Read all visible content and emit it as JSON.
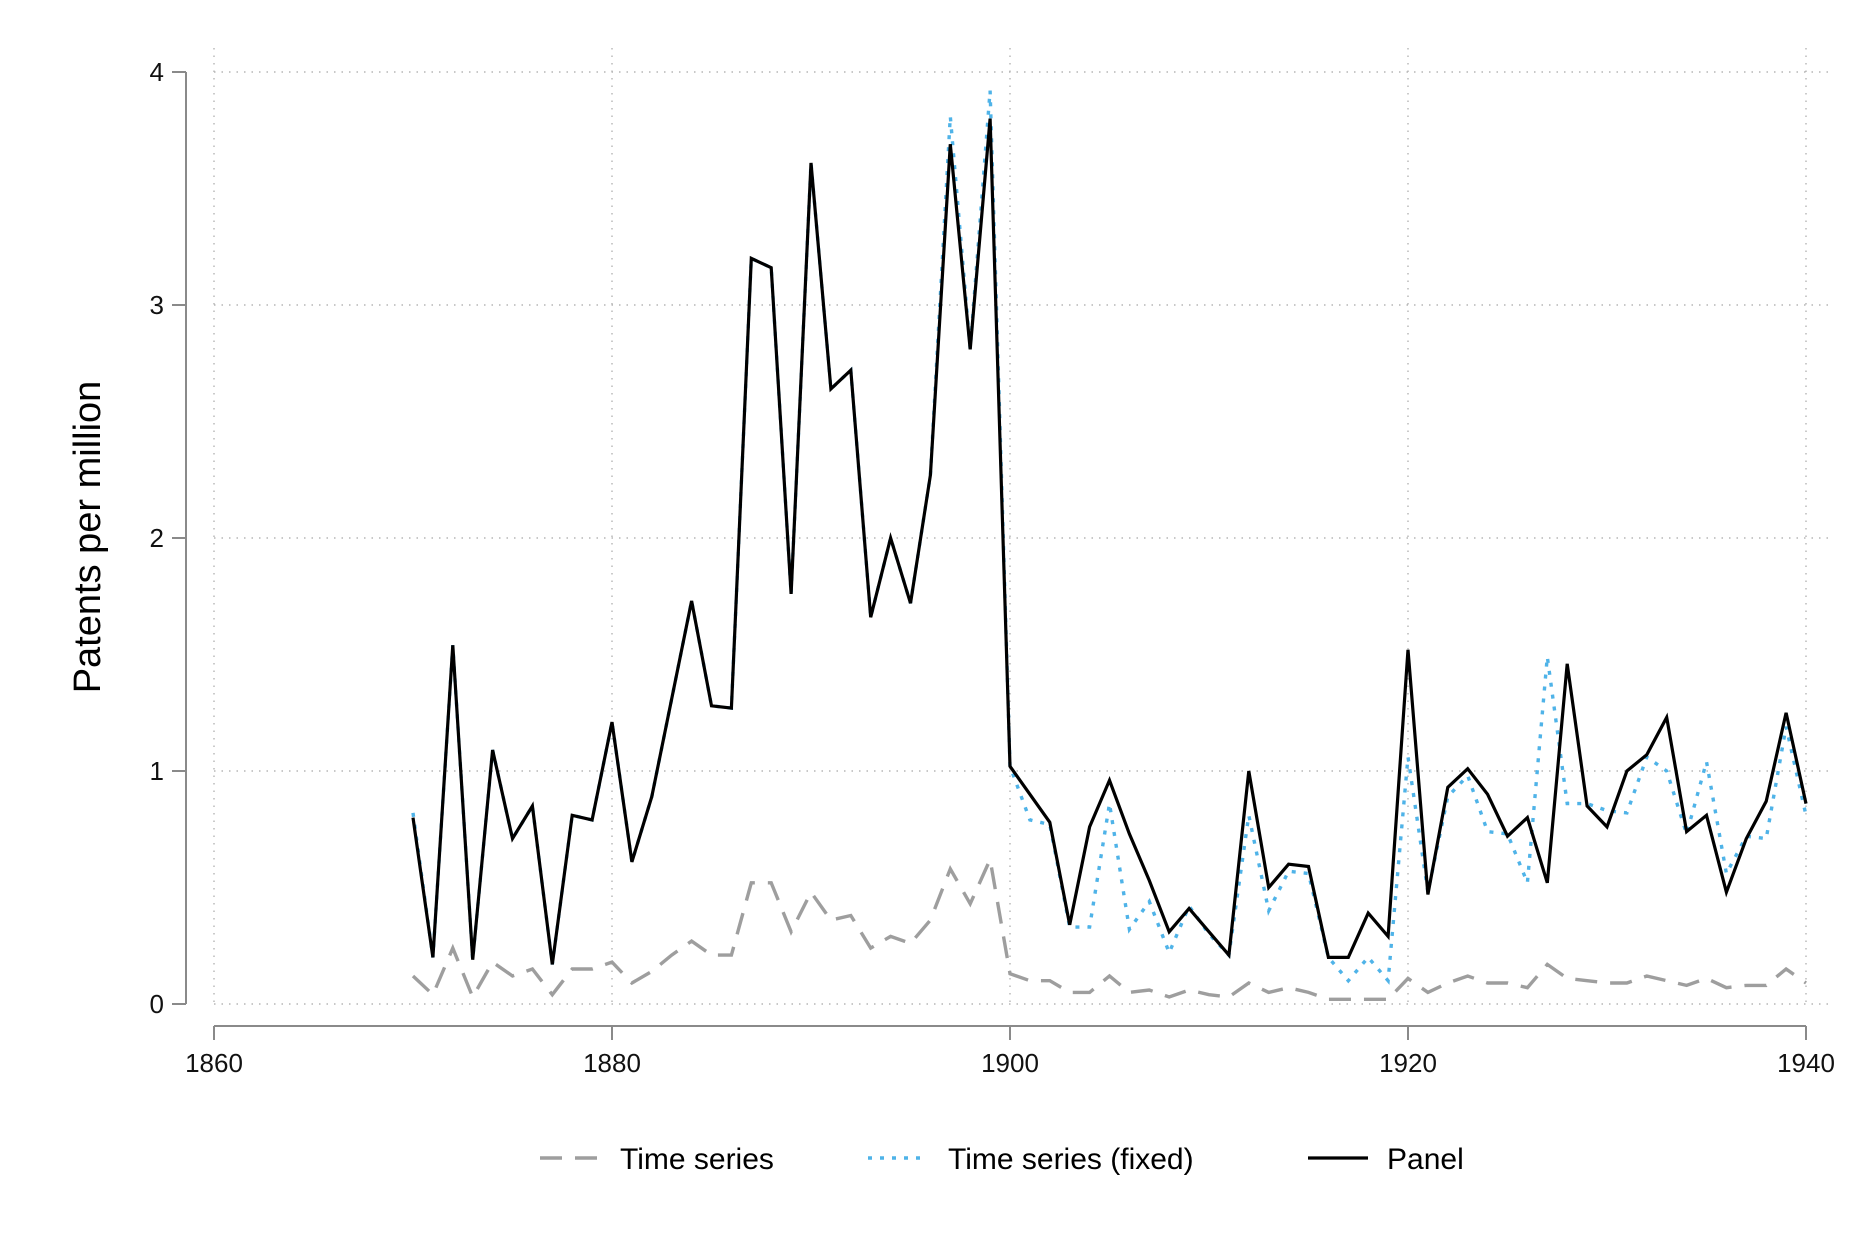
{
  "chart_data": {
    "type": "line",
    "title": "",
    "xlabel": "",
    "ylabel": "Patents per million",
    "xlim": [
      1860,
      1940
    ],
    "ylim": [
      0,
      4
    ],
    "xticks": [
      1860,
      1880,
      1900,
      1920,
      1940
    ],
    "yticks": [
      0,
      1,
      2,
      3,
      4
    ],
    "grid": true,
    "legend_position": "bottom",
    "x": [
      1870,
      1871,
      1872,
      1873,
      1874,
      1875,
      1876,
      1877,
      1878,
      1879,
      1880,
      1881,
      1882,
      1883,
      1884,
      1885,
      1886,
      1887,
      1888,
      1889,
      1890,
      1891,
      1892,
      1893,
      1894,
      1895,
      1896,
      1897,
      1898,
      1899,
      1900,
      1901,
      1902,
      1903,
      1904,
      1905,
      1906,
      1907,
      1908,
      1909,
      1910,
      1911,
      1912,
      1913,
      1914,
      1915,
      1916,
      1917,
      1918,
      1919,
      1920,
      1921,
      1922,
      1923,
      1924,
      1925,
      1926,
      1927,
      1928,
      1929,
      1930,
      1931,
      1932,
      1933,
      1934,
      1935,
      1936,
      1937,
      1938,
      1939,
      1940
    ],
    "series": [
      {
        "name": "Time series",
        "color": "#9e9e9e",
        "dash": "dashed",
        "values": [
          0.12,
          0.04,
          0.24,
          0.03,
          0.18,
          0.12,
          0.15,
          0.04,
          0.15,
          0.15,
          0.18,
          0.09,
          0.14,
          0.21,
          0.27,
          0.21,
          0.21,
          0.52,
          0.52,
          0.31,
          0.48,
          0.36,
          0.38,
          0.24,
          0.29,
          0.26,
          0.36,
          0.58,
          0.43,
          0.62,
          0.13,
          0.1,
          0.1,
          0.05,
          0.05,
          0.12,
          0.05,
          0.06,
          0.03,
          0.06,
          0.04,
          0.03,
          0.09,
          0.05,
          0.07,
          0.05,
          0.02,
          0.02,
          0.02,
          0.02,
          0.11,
          0.05,
          0.09,
          0.12,
          0.09,
          0.09,
          0.07,
          0.17,
          0.11,
          0.1,
          0.09,
          0.09,
          0.12,
          0.1,
          0.08,
          0.11,
          0.07,
          0.08,
          0.08,
          0.15,
          0.09
        ]
      },
      {
        "name": "Time series (fixed)",
        "color": "#4fb3e8",
        "dash": "dotted",
        "values": [
          0.82,
          0.2,
          1.54,
          0.19,
          1.09,
          0.71,
          0.85,
          0.17,
          0.81,
          0.79,
          1.21,
          0.61,
          0.89,
          1.31,
          1.73,
          1.28,
          1.27,
          3.2,
          3.16,
          1.76,
          3.61,
          2.64,
          2.72,
          1.66,
          2.0,
          1.72,
          2.27,
          3.81,
          2.81,
          3.92,
          1.02,
          0.79,
          0.77,
          0.33,
          0.33,
          0.86,
          0.32,
          0.44,
          0.22,
          0.42,
          0.3,
          0.21,
          0.81,
          0.4,
          0.57,
          0.56,
          0.2,
          0.1,
          0.2,
          0.1,
          1.06,
          0.48,
          0.89,
          0.98,
          0.74,
          0.73,
          0.52,
          1.49,
          0.86,
          0.86,
          0.83,
          0.82,
          1.06,
          1.0,
          0.73,
          1.04,
          0.56,
          0.72,
          0.71,
          1.19,
          0.81
        ]
      },
      {
        "name": "Panel",
        "color": "#000000",
        "dash": "solid",
        "values": [
          0.8,
          0.2,
          1.54,
          0.19,
          1.09,
          0.71,
          0.85,
          0.17,
          0.81,
          0.79,
          1.21,
          0.61,
          0.89,
          1.31,
          1.73,
          1.28,
          1.27,
          3.2,
          3.16,
          1.76,
          3.61,
          2.64,
          2.72,
          1.66,
          2.0,
          1.72,
          2.27,
          3.69,
          2.81,
          3.8,
          1.02,
          0.9,
          0.78,
          0.34,
          0.76,
          0.96,
          0.73,
          0.53,
          0.31,
          0.41,
          0.31,
          0.21,
          1.0,
          0.5,
          0.6,
          0.59,
          0.2,
          0.2,
          0.39,
          0.29,
          1.52,
          0.47,
          0.93,
          1.01,
          0.9,
          0.72,
          0.8,
          0.52,
          1.46,
          0.85,
          0.76,
          1.0,
          1.07,
          1.23,
          0.74,
          0.81,
          0.48,
          0.71,
          0.87,
          1.25,
          0.86
        ]
      }
    ]
  }
}
